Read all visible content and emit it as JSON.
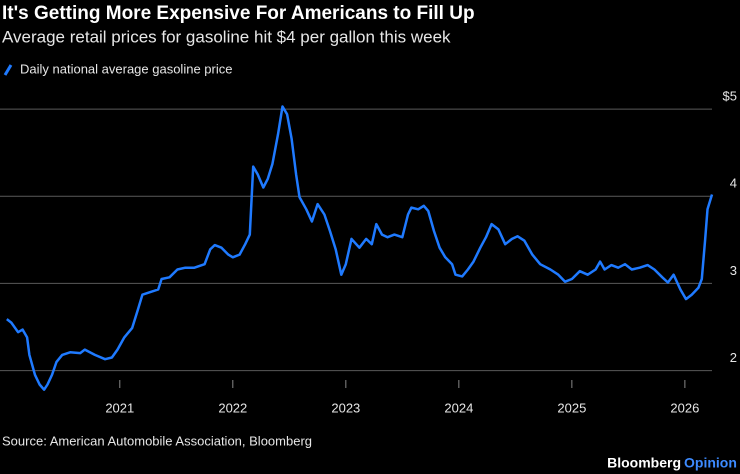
{
  "chart_data": {
    "type": "line",
    "title": "It's Getting More Expensive For Americans to Fill Up",
    "subtitle": "Average retail prices for gasoline hit $4 per gallon this week",
    "source": "Source: American Automobile Association, Bloomberg",
    "brand": "Bloomberg",
    "brand_sub": "Opinion",
    "x": [
      2020.0,
      2020.04,
      2020.1,
      2020.14,
      2020.18,
      2020.2,
      2020.25,
      2020.29,
      2020.33,
      2020.36,
      2020.4,
      2020.44,
      2020.49,
      2020.56,
      2020.65,
      2020.69,
      2020.78,
      2020.87,
      2020.93,
      2020.98,
      2021.04,
      2021.11,
      2021.16,
      2021.2,
      2021.27,
      2021.34,
      2021.37,
      2021.44,
      2021.51,
      2021.58,
      2021.66,
      2021.75,
      2021.8,
      2021.84,
      2021.9,
      2021.96,
      2022.0,
      2022.06,
      2022.11,
      2022.15,
      2022.18,
      2022.22,
      2022.27,
      2022.31,
      2022.35,
      2022.4,
      2022.44,
      2022.48,
      2022.52,
      2022.56,
      2022.59,
      2022.65,
      2022.7,
      2022.75,
      2022.81,
      2022.86,
      2022.91,
      2022.96,
      2023.0,
      2023.05,
      2023.12,
      2023.18,
      2023.23,
      2023.27,
      2023.32,
      2023.37,
      2023.43,
      2023.5,
      2023.55,
      2023.58,
      2023.64,
      2023.69,
      2023.73,
      2023.78,
      2023.83,
      2023.88,
      2023.94,
      2023.97,
      2024.03,
      2024.08,
      2024.13,
      2024.19,
      2024.24,
      2024.29,
      2024.35,
      2024.41,
      2024.47,
      2024.52,
      2024.58,
      2024.65,
      2024.72,
      2024.81,
      2024.88,
      2024.94,
      2025.0,
      2025.07,
      2025.14,
      2025.21,
      2025.25,
      2025.29,
      2025.35,
      2025.41,
      2025.47,
      2025.53,
      2025.6,
      2025.67,
      2025.73,
      2025.8,
      2025.85,
      2025.9,
      2025.96,
      2026.01,
      2026.06,
      2026.12,
      2026.15,
      2026.18,
      2026.2,
      2026.24
    ],
    "series": [
      {
        "name": "Daily national average gasoline price",
        "color": "#1f7aff",
        "values": [
          2.59,
          2.55,
          2.44,
          2.47,
          2.38,
          2.18,
          1.95,
          1.84,
          1.78,
          1.84,
          1.95,
          2.1,
          2.18,
          2.21,
          2.2,
          2.24,
          2.18,
          2.13,
          2.15,
          2.24,
          2.38,
          2.49,
          2.7,
          2.87,
          2.9,
          2.93,
          3.05,
          3.07,
          3.16,
          3.18,
          3.18,
          3.22,
          3.39,
          3.44,
          3.41,
          3.33,
          3.3,
          3.33,
          3.45,
          3.56,
          4.34,
          4.25,
          4.1,
          4.2,
          4.37,
          4.71,
          5.03,
          4.94,
          4.66,
          4.25,
          3.99,
          3.85,
          3.71,
          3.91,
          3.79,
          3.6,
          3.39,
          3.1,
          3.22,
          3.51,
          3.41,
          3.51,
          3.45,
          3.68,
          3.56,
          3.53,
          3.56,
          3.53,
          3.79,
          3.87,
          3.85,
          3.89,
          3.83,
          3.6,
          3.41,
          3.3,
          3.22,
          3.1,
          3.08,
          3.16,
          3.25,
          3.41,
          3.53,
          3.68,
          3.62,
          3.45,
          3.51,
          3.54,
          3.49,
          3.33,
          3.22,
          3.16,
          3.1,
          3.02,
          3.05,
          3.14,
          3.1,
          3.16,
          3.25,
          3.16,
          3.21,
          3.18,
          3.22,
          3.16,
          3.18,
          3.21,
          3.16,
          3.07,
          3.01,
          3.1,
          2.93,
          2.82,
          2.87,
          2.95,
          3.05,
          3.51,
          3.85,
          4.02
        ]
      }
    ],
    "xlim": [
      2019.94,
      2026.24
    ],
    "xticks": [
      2021,
      2022,
      2023,
      2024,
      2025,
      2026
    ],
    "ylim": [
      1.8,
      5.15
    ],
    "yticks": [
      2,
      3,
      4,
      {
        "value": 5,
        "label": "$5"
      }
    ],
    "grid": true
  }
}
